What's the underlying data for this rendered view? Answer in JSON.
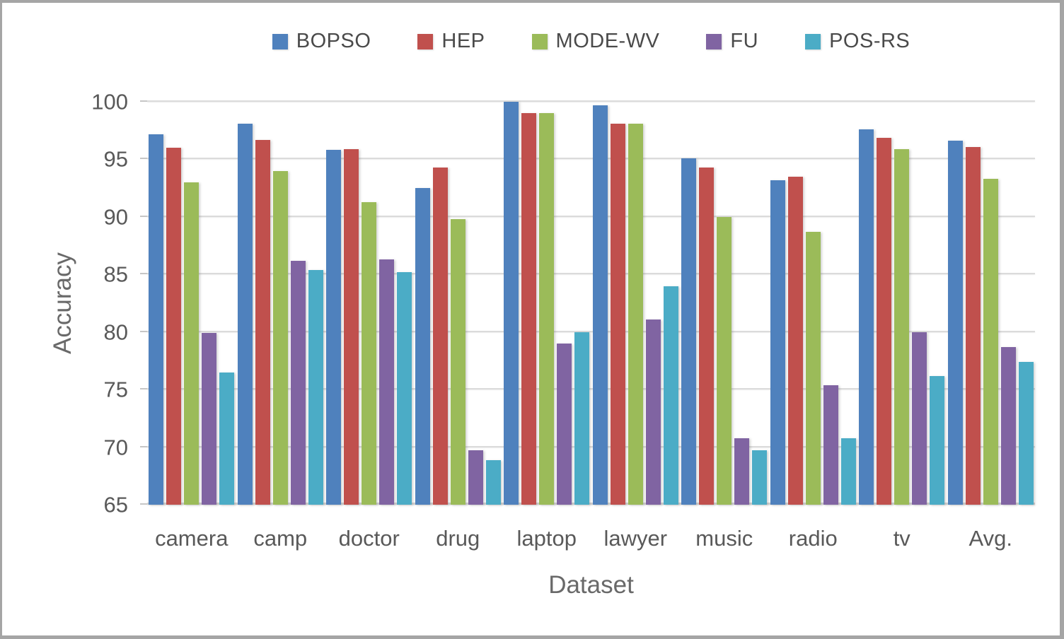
{
  "frame": {
    "background": "#ffffff",
    "border_color": "#A5A5A5"
  },
  "axis_style": {
    "tick_text_color": "#595959",
    "title_text_color": "#696969",
    "grid_color": "#dbdbdb"
  },
  "chart_data": {
    "type": "bar",
    "title": "",
    "xlabel": "Dataset",
    "ylabel": "Accuracy",
    "ylim": [
      65,
      100
    ],
    "yticks": [
      65,
      70,
      75,
      80,
      85,
      90,
      95,
      100
    ],
    "grid": true,
    "legend_position": "top",
    "categories": [
      "camera",
      "camp",
      "doctor",
      "drug",
      "laptop",
      "lawyer",
      "music",
      "radio",
      "tv",
      "Avg."
    ],
    "series": [
      {
        "name": "BOPSO",
        "color": "#4F81BD",
        "values": [
          97.2,
          98.1,
          95.8,
          92.5,
          100.0,
          99.7,
          95.1,
          93.2,
          97.6,
          96.6
        ]
      },
      {
        "name": "HEP",
        "color": "#C0504D",
        "values": [
          96.0,
          96.7,
          95.9,
          94.3,
          99.0,
          98.1,
          94.3,
          93.5,
          96.9,
          96.1
        ]
      },
      {
        "name": "MODE-WV",
        "color": "#9BBB59",
        "values": [
          93.0,
          94.0,
          91.3,
          89.8,
          99.0,
          98.1,
          90.0,
          88.7,
          95.9,
          93.3
        ]
      },
      {
        "name": "FU",
        "color": "#8064A2",
        "values": [
          79.9,
          86.2,
          86.3,
          69.7,
          79.0,
          81.1,
          70.8,
          75.4,
          80.0,
          78.7
        ]
      },
      {
        "name": "POS-RS",
        "color": "#4BACC6",
        "values": [
          76.5,
          85.4,
          85.2,
          68.9,
          80.0,
          84.0,
          69.7,
          70.8,
          76.2,
          77.4
        ]
      }
    ]
  }
}
